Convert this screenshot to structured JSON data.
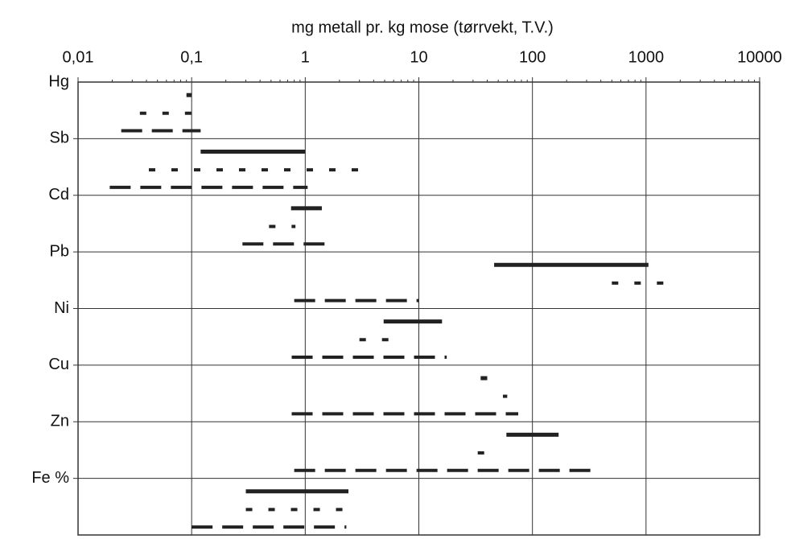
{
  "chart_data": {
    "type": "range",
    "title": "mg metall pr. kg mose (tørrvekt, T.V.)",
    "categories": [
      "Hg",
      "Sb",
      "Cd",
      "Pb",
      "Ni",
      "Cu",
      "Zn",
      "Fe %"
    ],
    "xscale": "log",
    "xlim": [
      0.01,
      10000
    ],
    "xticks": [
      {
        "value": 0.01,
        "label": "0,01"
      },
      {
        "value": 0.1,
        "label": "0,1"
      },
      1,
      10,
      100,
      1000,
      10000
    ],
    "grid": true,
    "color": "#222222",
    "series": [
      {
        "style": "solid",
        "values": [
          [
            0.09,
            0.1
          ],
          [
            0.12,
            1
          ],
          [
            0.75,
            1.4
          ],
          [
            46,
            1050
          ],
          [
            4.9,
            16
          ],
          [
            35,
            40
          ],
          [
            59,
            170
          ],
          [
            0.3,
            2.4
          ]
        ]
      },
      {
        "style": "dotted",
        "values": [
          [
            0.035,
            0.1
          ],
          [
            0.042,
            4
          ],
          [
            0.48,
            0.82
          ],
          [
            500,
            1500
          ],
          [
            3,
            5.8
          ],
          [
            55,
            60
          ],
          [
            33,
            38
          ],
          [
            0.3,
            2.2
          ]
        ]
      },
      {
        "style": "dashed",
        "values": [
          [
            0.024,
            0.12
          ],
          [
            0.019,
            1.05
          ],
          [
            0.28,
            1.5
          ],
          [
            0.8,
            10
          ],
          [
            0.76,
            17.6
          ],
          [
            0.76,
            75
          ],
          [
            0.8,
            350
          ],
          [
            0.1,
            2.3
          ]
        ]
      }
    ]
  }
}
